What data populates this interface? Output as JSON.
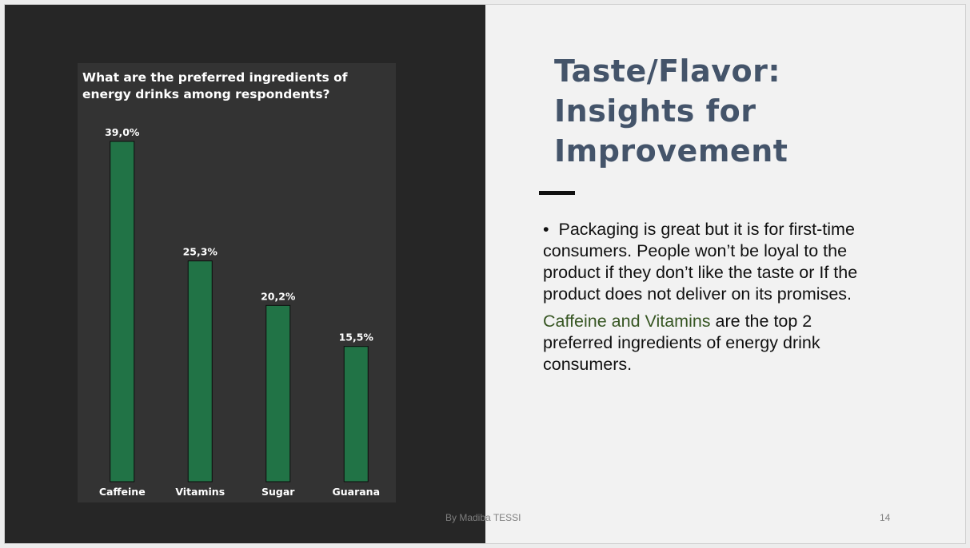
{
  "slide": {
    "title": "Taste/Flavor: Insights for Improvement",
    "bullet_text": "Packaging is great but it is for first-time consumers. People won’t be loyal to the product if they don’t like the taste or If the product does not deliver on its promises.",
    "highlight_text": "Caffeine and Vitamins",
    "after_highlight_text": " are the top 2 preferred ingredients of energy drink consumers.",
    "footer_author": "By Madiba TESSI",
    "page_number": "14",
    "colors": {
      "title": "#44546a",
      "highlight": "#375623",
      "bar": "#217346",
      "left_background": "#262626",
      "chart_background": "#333333"
    }
  },
  "chart_data": {
    "type": "bar",
    "title": "What are the preferred ingredients of energy drinks among respondents?",
    "categories": [
      "Caffeine",
      "Vitamins",
      "Sugar",
      "Guarana"
    ],
    "values": [
      39.0,
      25.3,
      20.2,
      15.5
    ],
    "value_labels": [
      "39,0%",
      "25,3%",
      "20,2%",
      "15,5%"
    ],
    "unit": "%",
    "ylim": [
      0,
      39.0
    ],
    "grid": false,
    "legend": "none"
  }
}
